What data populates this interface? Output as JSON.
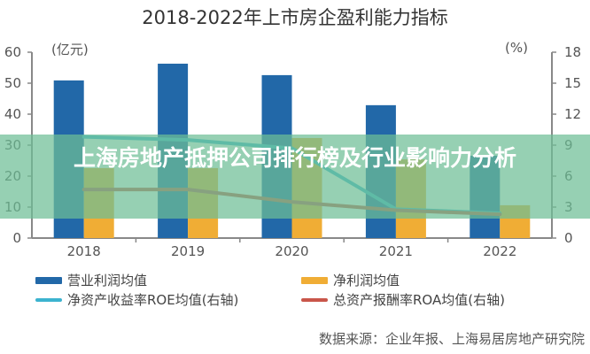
{
  "title": "2018-2022年上市房企盈利能力指标",
  "overlay_title": "上海房地产抵押公司排行榜及行业影响力分析",
  "source": "数据来源：企业年报、上海易居房地产研究院",
  "colors": {
    "operating_profit": "#2268a8",
    "net_profit": "#f0ad35",
    "roe": "#3cb3cf",
    "roa": "#c9564a",
    "overlay": "#6ebe96",
    "axis": "#888888"
  },
  "legend": [
    {
      "label": "营业利润均值",
      "type": "bar",
      "color": "#2268a8"
    },
    {
      "label": "净利润均值",
      "type": "bar",
      "color": "#f0ad35"
    },
    {
      "label": "净资产收益率ROE均值(右轴)",
      "type": "line",
      "color": "#3cb3cf"
    },
    {
      "label": "总资产报酬率ROA均值(右轴)",
      "type": "line",
      "color": "#c9564a"
    }
  ],
  "chart_data": {
    "type": "bar",
    "title": "2018-2022年上市房企盈利能力指标",
    "categories": [
      "2018",
      "2019",
      "2020",
      "2021",
      "2022"
    ],
    "series": [
      {
        "name": "营业利润均值",
        "type": "bar",
        "axis": "left",
        "values": [
          50.9,
          56.3,
          52.6,
          42.9,
          26.6
        ]
      },
      {
        "name": "净利润均值",
        "type": "bar",
        "axis": "left",
        "values": [
          22.6,
          22.6,
          32.3,
          25.4,
          10.6
        ]
      },
      {
        "name": "净资产收益率ROE均值(右轴)",
        "type": "line",
        "axis": "right",
        "values": [
          9.8,
          9.5,
          8.7,
          2.8,
          2.4
        ]
      },
      {
        "name": "总资产报酬率ROA均值(右轴)",
        "type": "line",
        "axis": "right",
        "values": [
          4.7,
          4.7,
          3.5,
          2.7,
          2.3
        ]
      }
    ],
    "ylabel": "(亿元)",
    "ylabel_right": "(%)",
    "ylim": [
      0,
      60
    ],
    "ylim_right": [
      0,
      18
    ],
    "yticks": [
      0,
      10,
      20,
      30,
      40,
      50,
      60
    ],
    "yticks_right": [
      0,
      3,
      6,
      9,
      12,
      15,
      18
    ],
    "grid": false,
    "legend_position": "bottom"
  }
}
